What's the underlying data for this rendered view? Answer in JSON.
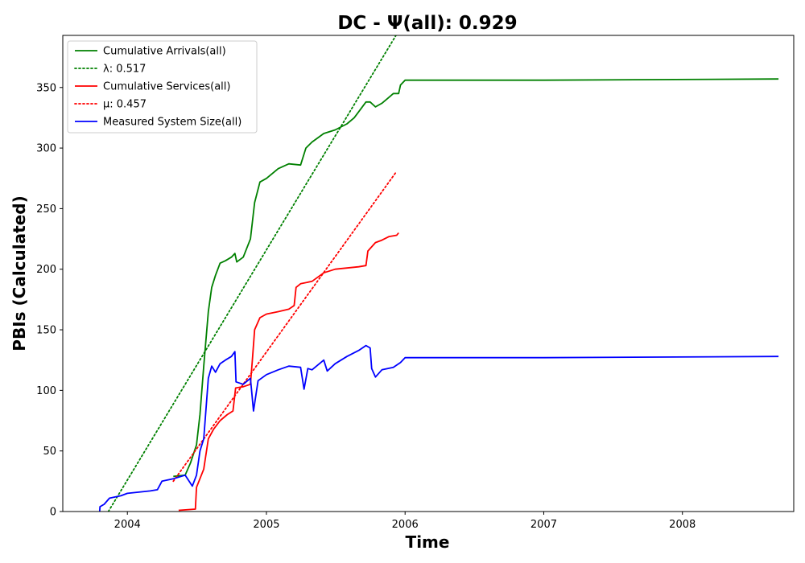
{
  "chart_data": {
    "type": "line",
    "title": "DC -  Ψ(all): 0.929",
    "xlabel": "Time",
    "ylabel": "PBIs (Calculated)",
    "xlim": [
      "2003-07-15",
      "2008-10-20"
    ],
    "ylim": [
      0,
      393
    ],
    "x_ticks": [
      "2004",
      "2005",
      "2006",
      "2007",
      "2008"
    ],
    "y_ticks": [
      0,
      50,
      100,
      150,
      200,
      250,
      300,
      350
    ],
    "legend_position": "upper-left",
    "grid": false,
    "series": [
      {
        "name": "Cumulative Arrivals(all)",
        "color": "#008000",
        "style": "solid",
        "points": [
          [
            "2004-05-01",
            29
          ],
          [
            "2004-06-01",
            30
          ],
          [
            "2004-06-15",
            40
          ],
          [
            "2004-07-01",
            55
          ],
          [
            "2004-07-10",
            80
          ],
          [
            "2004-07-20",
            120
          ],
          [
            "2004-08-01",
            165
          ],
          [
            "2004-08-10",
            185
          ],
          [
            "2004-08-20",
            195
          ],
          [
            "2004-09-01",
            205
          ],
          [
            "2004-09-15",
            207
          ],
          [
            "2004-10-01",
            210
          ],
          [
            "2004-10-10",
            213
          ],
          [
            "2004-10-15",
            206
          ],
          [
            "2004-11-01",
            210
          ],
          [
            "2004-11-20",
            225
          ],
          [
            "2004-12-01",
            255
          ],
          [
            "2004-12-15",
            272
          ],
          [
            "2005-01-01",
            275
          ],
          [
            "2005-02-01",
            283
          ],
          [
            "2005-03-01",
            287
          ],
          [
            "2005-04-01",
            286
          ],
          [
            "2005-04-15",
            300
          ],
          [
            "2005-05-01",
            305
          ],
          [
            "2005-06-01",
            312
          ],
          [
            "2005-07-01",
            315
          ],
          [
            "2005-08-01",
            320
          ],
          [
            "2005-08-20",
            325
          ],
          [
            "2005-09-01",
            330
          ],
          [
            "2005-09-20",
            338
          ],
          [
            "2005-10-01",
            338
          ],
          [
            "2005-10-15",
            334
          ],
          [
            "2005-11-01",
            337
          ],
          [
            "2005-11-20",
            342
          ],
          [
            "2005-12-01",
            345
          ],
          [
            "2005-12-15",
            345
          ],
          [
            "2005-12-20",
            352
          ],
          [
            "2006-01-01",
            356
          ],
          [
            "2007-01-01",
            356
          ],
          [
            "2008-09-10",
            357
          ]
        ]
      },
      {
        "name": "λ: 0.517",
        "color": "#008000",
        "style": "dotted",
        "points": [
          [
            "2003-11-12",
            0
          ],
          [
            "2005-12-08",
            393
          ]
        ]
      },
      {
        "name": "Cumulative Services(all)",
        "color": "#ff0000",
        "style": "solid",
        "points": [
          [
            "2004-05-15",
            1
          ],
          [
            "2004-06-28",
            2
          ],
          [
            "2004-07-01",
            20
          ],
          [
            "2004-07-20",
            35
          ],
          [
            "2004-08-01",
            60
          ],
          [
            "2004-08-15",
            68
          ],
          [
            "2004-09-01",
            75
          ],
          [
            "2004-09-20",
            80
          ],
          [
            "2004-10-05",
            83
          ],
          [
            "2004-10-12",
            102
          ],
          [
            "2004-11-01",
            103
          ],
          [
            "2004-11-20",
            105
          ],
          [
            "2004-11-25",
            125
          ],
          [
            "2004-12-01",
            150
          ],
          [
            "2004-12-15",
            160
          ],
          [
            "2005-01-01",
            163
          ],
          [
            "2005-02-01",
            165
          ],
          [
            "2005-03-01",
            167
          ],
          [
            "2005-03-15",
            170
          ],
          [
            "2005-03-20",
            185
          ],
          [
            "2005-04-01",
            188
          ],
          [
            "2005-05-01",
            190
          ],
          [
            "2005-06-01",
            197
          ],
          [
            "2005-07-01",
            200
          ],
          [
            "2005-08-01",
            201
          ],
          [
            "2005-09-01",
            202
          ],
          [
            "2005-09-20",
            203
          ],
          [
            "2005-09-25",
            215
          ],
          [
            "2005-10-15",
            222
          ],
          [
            "2005-11-01",
            224
          ],
          [
            "2005-11-20",
            227
          ],
          [
            "2005-12-10",
            228
          ],
          [
            "2005-12-15",
            230
          ]
        ]
      },
      {
        "name": "μ: 0.457",
        "color": "#ff0000",
        "style": "dotted",
        "points": [
          [
            "2004-05-01",
            25
          ],
          [
            "2005-12-08",
            280
          ]
        ]
      },
      {
        "name": "Measured System Size(all)",
        "color": "#0000ff",
        "style": "solid",
        "points": [
          [
            "2003-10-20",
            0
          ],
          [
            "2003-10-21",
            4
          ],
          [
            "2003-11-01",
            6
          ],
          [
            "2003-11-15",
            11
          ],
          [
            "2003-12-15",
            13
          ],
          [
            "2004-01-01",
            15
          ],
          [
            "2004-03-01",
            17
          ],
          [
            "2004-03-20",
            18
          ],
          [
            "2004-04-01",
            25
          ],
          [
            "2004-05-01",
            27
          ],
          [
            "2004-06-01",
            30
          ],
          [
            "2004-06-20",
            21
          ],
          [
            "2004-07-01",
            30
          ],
          [
            "2004-07-10",
            50
          ],
          [
            "2004-07-20",
            60
          ],
          [
            "2004-08-01",
            110
          ],
          [
            "2004-08-10",
            120
          ],
          [
            "2004-08-20",
            115
          ],
          [
            "2004-09-01",
            122
          ],
          [
            "2004-09-15",
            125
          ],
          [
            "2004-10-01",
            128
          ],
          [
            "2004-10-10",
            132
          ],
          [
            "2004-10-13",
            107
          ],
          [
            "2004-11-01",
            105
          ],
          [
            "2004-11-20",
            110
          ],
          [
            "2004-11-28",
            83
          ],
          [
            "2004-12-10",
            108
          ],
          [
            "2005-01-01",
            113
          ],
          [
            "2005-02-01",
            117
          ],
          [
            "2005-03-01",
            120
          ],
          [
            "2005-04-01",
            119
          ],
          [
            "2005-04-10",
            101
          ],
          [
            "2005-04-20",
            118
          ],
          [
            "2005-05-01",
            117
          ],
          [
            "2005-06-01",
            125
          ],
          [
            "2005-06-10",
            116
          ],
          [
            "2005-07-01",
            122
          ],
          [
            "2005-08-01",
            128
          ],
          [
            "2005-09-01",
            133
          ],
          [
            "2005-09-20",
            137
          ],
          [
            "2005-10-01",
            135
          ],
          [
            "2005-10-05",
            118
          ],
          [
            "2005-10-15",
            111
          ],
          [
            "2005-11-01",
            117
          ],
          [
            "2005-12-01",
            119
          ],
          [
            "2005-12-20",
            123
          ],
          [
            "2006-01-01",
            127
          ],
          [
            "2007-01-01",
            127
          ],
          [
            "2008-09-10",
            128
          ]
        ]
      }
    ]
  }
}
